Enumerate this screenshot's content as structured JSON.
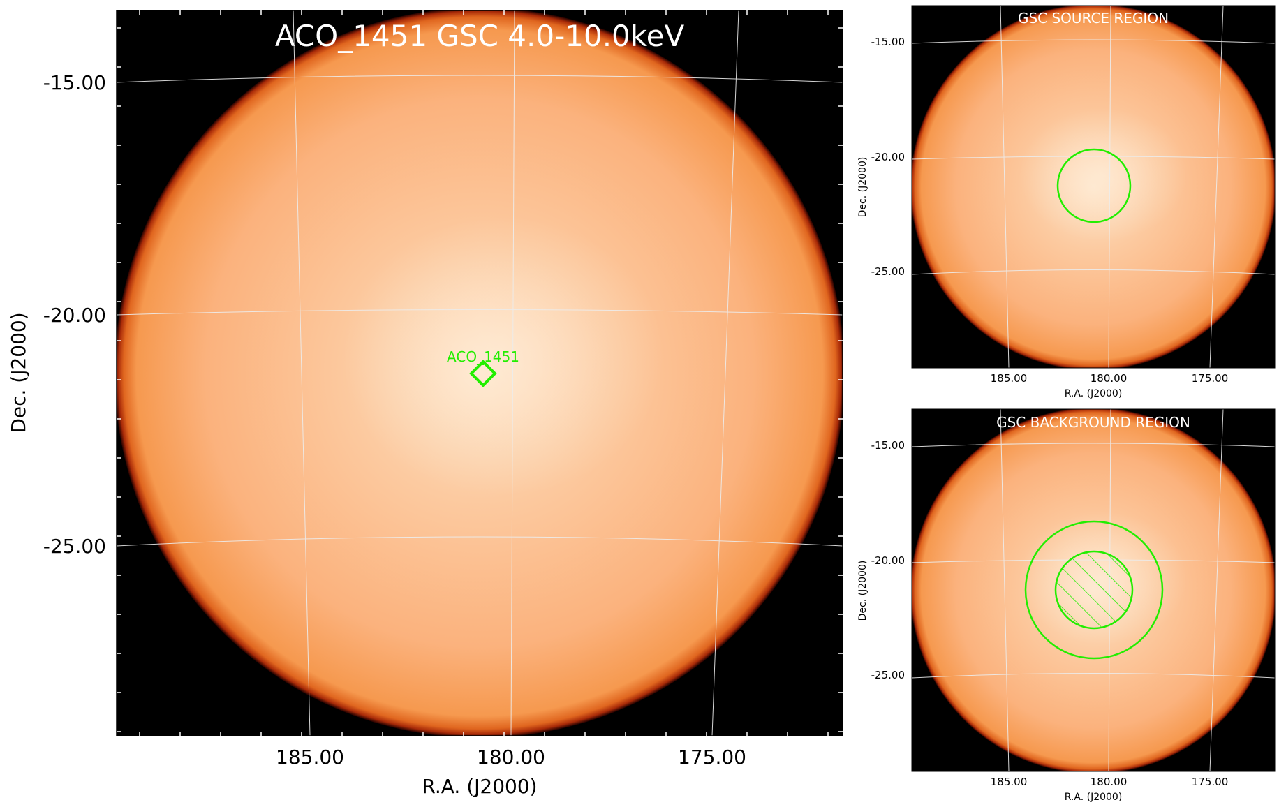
{
  "main_panel": {
    "title": "ACO_1451 GSC 4.0-10.0keV",
    "source_label": "ACO_1451",
    "xlabel": "R.A. (J2000)",
    "ylabel": "Dec. (J2000)",
    "xticks": [
      "185.00",
      "180.00",
      "175.00"
    ],
    "yticks": [
      "-15.00",
      "-20.00",
      "-25.00"
    ]
  },
  "source_panel": {
    "title": "GSC SOURCE REGION",
    "xlabel": "R.A. (J2000)",
    "ylabel": "Dec. (J2000)",
    "xticks": [
      "185.00",
      "180.00",
      "175.00"
    ],
    "yticks": [
      "-15.00",
      "-20.00",
      "-25.00"
    ]
  },
  "background_panel": {
    "title": "GSC BACKGROUND REGION",
    "xlabel": "R.A. (J2000)",
    "ylabel": "Dec. (J2000)",
    "xticks": [
      "185.00",
      "180.00",
      "175.00"
    ],
    "yticks": [
      "-15.00",
      "-20.00",
      "-25.00"
    ]
  },
  "colors": {
    "region": "#22ee00",
    "image_center": "#fde3c6",
    "image_mid": "#fcb27c",
    "image_edge": "#f08b45",
    "limb": "#b02a08",
    "background": "#000000",
    "grid": "#e8e8e8"
  }
}
